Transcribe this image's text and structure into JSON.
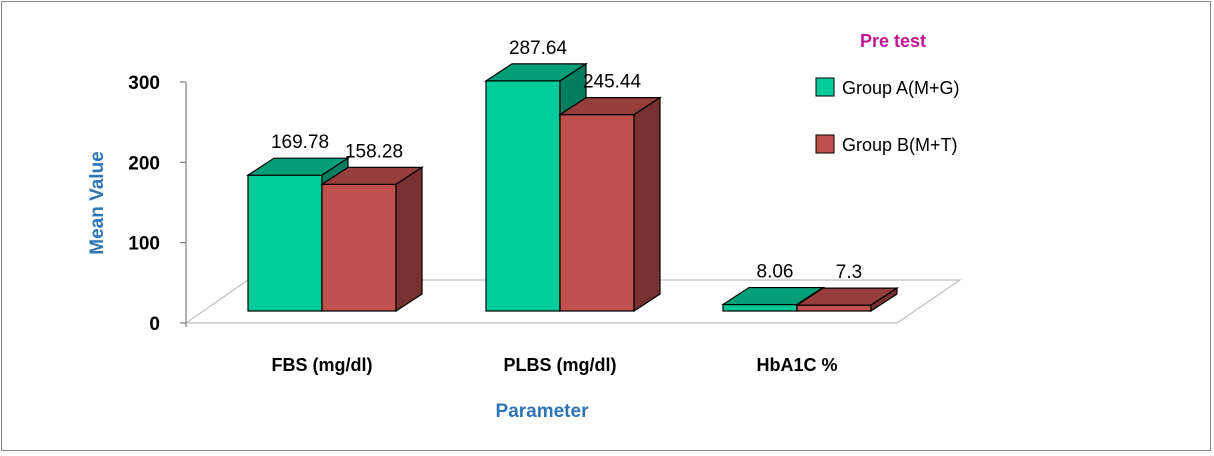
{
  "chart_data": {
    "type": "bar",
    "categories": [
      "FBS (mg/dl)",
      "PLBS (mg/dl)",
      "HbA1C %"
    ],
    "series": [
      {
        "name": "Group A(M+G)",
        "values": [
          169.78,
          287.64,
          8.06
        ],
        "color": "#00cc99"
      },
      {
        "name": "Group B(M+T)",
        "values": [
          158.28,
          245.44,
          7.3
        ],
        "color": "#c0504d"
      }
    ],
    "data_labels": [
      [
        "169.78",
        "287.64",
        "8.06"
      ],
      [
        "158.28",
        "245.44",
        "7.3"
      ]
    ],
    "title": "",
    "legend_title": "Pre test",
    "xlabel": "Parameter",
    "ylabel": "Mean Value",
    "ylim": [
      0,
      300
    ],
    "yticks": [
      0,
      100,
      200,
      300
    ],
    "legend_position": "right",
    "grid": false,
    "style": "3d-clustered-column"
  }
}
